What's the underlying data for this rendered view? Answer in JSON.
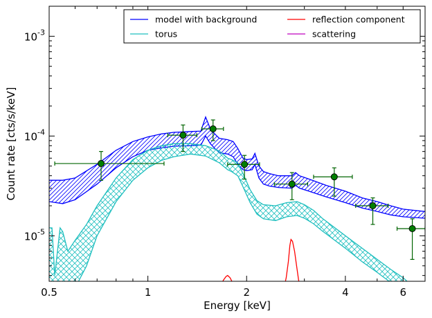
{
  "chart_data": {
    "type": "line",
    "xlabel": "Energy [keV]",
    "ylabel": "Count rate [cts/s/keV]",
    "xscale": "log",
    "yscale": "log",
    "xlim": [
      0.5,
      7.0
    ],
    "ylim": [
      3.5e-06,
      0.002
    ],
    "x_ticks": [
      {
        "value": 0.5,
        "label": "0.5"
      },
      {
        "value": 1,
        "label": "1"
      },
      {
        "value": 2,
        "label": "2"
      },
      {
        "value": 4,
        "label": "4"
      },
      {
        "value": 6,
        "label": "6"
      }
    ],
    "y_ticks": [
      {
        "value": 1e-05,
        "base": "10",
        "exp": "-5"
      },
      {
        "value": 0.0001,
        "base": "10",
        "exp": "-4"
      },
      {
        "value": 0.001,
        "base": "10",
        "exp": "-3"
      }
    ],
    "legend": {
      "position": "top-right",
      "entries": [
        {
          "label": "model with background",
          "color": "#0000ff"
        },
        {
          "label": "reflection component",
          "color": "#ff0000"
        },
        {
          "label": "torus",
          "color": "#1fbfbf"
        },
        {
          "label": "scattering",
          "color": "#bf00bf"
        }
      ]
    },
    "series": [
      {
        "name": "model with background",
        "color": "#0000ff",
        "band": true,
        "hatch": "diagonal",
        "x": [
          0.5,
          0.55,
          0.6,
          0.7,
          0.8,
          0.9,
          1.0,
          1.1,
          1.2,
          1.35,
          1.45,
          1.5,
          1.55,
          1.6,
          1.65,
          1.75,
          1.82,
          1.88,
          1.95,
          2.0,
          2.08,
          2.12,
          2.18,
          2.25,
          2.35,
          2.5,
          2.75,
          2.82,
          2.9,
          3.1,
          3.5,
          4.0,
          4.5,
          5.0,
          5.5,
          6.0,
          7.0
        ],
        "upper": [
          3.6e-05,
          3.6e-05,
          3.8e-05,
          5.2e-05,
          7.2e-05,
          8.8e-05,
          9.8e-05,
          0.000105,
          0.000109,
          0.000111,
          0.000112,
          0.000155,
          0.000118,
          0.000105,
          9.5e-05,
          9.2e-05,
          8.8e-05,
          7.5e-05,
          6e-05,
          5.8e-05,
          5.9e-05,
          6.7e-05,
          5e-05,
          4.4e-05,
          4.2e-05,
          4e-05,
          4e-05,
          4.3e-05,
          4e-05,
          3.7e-05,
          3.2e-05,
          2.8e-05,
          2.4e-05,
          2.2e-05,
          2e-05,
          1.85e-05,
          1.75e-05
        ],
        "lower": [
          2.2e-05,
          2.1e-05,
          2.3e-05,
          3.3e-05,
          4.8e-05,
          6.2e-05,
          7.2e-05,
          7.6e-05,
          7.9e-05,
          8e-05,
          8.1e-05,
          0.0001,
          8.4e-05,
          7.5e-05,
          6.8e-05,
          6.6e-05,
          6.2e-05,
          5.2e-05,
          4.6e-05,
          4.5e-05,
          4.6e-05,
          5.2e-05,
          3.8e-05,
          3.3e-05,
          3.15e-05,
          3.05e-05,
          3e-05,
          3.2e-05,
          3e-05,
          2.8e-05,
          2.45e-05,
          2.15e-05,
          1.9e-05,
          1.75e-05,
          1.62e-05,
          1.55e-05,
          1.5e-05
        ]
      },
      {
        "name": "torus",
        "color": "#1fbfbf",
        "band": true,
        "hatch": "cross",
        "x": [
          0.5,
          0.51,
          0.52,
          0.54,
          0.55,
          0.57,
          0.6,
          0.65,
          0.7,
          0.8,
          0.9,
          1.0,
          1.1,
          1.2,
          1.35,
          1.5,
          1.65,
          1.75,
          1.8,
          1.88,
          1.95,
          2.05,
          2.15,
          2.25,
          2.45,
          2.65,
          2.85,
          3.0,
          3.2,
          3.4,
          4.0,
          4.5,
          5.0,
          5.5,
          6.0,
          6.5,
          7.0
        ],
        "upper": [
          1.2e-05,
          1.2e-05,
          4e-06,
          1.2e-05,
          1.1e-05,
          7e-06,
          9e-06,
          1.3e-05,
          2e-05,
          3.8e-05,
          5.8e-05,
          7.2e-05,
          8e-05,
          8.4e-05,
          8.4e-05,
          8e-05,
          7.1e-05,
          6e-05,
          5.8e-05,
          5.4e-05,
          4.2e-05,
          2.9e-05,
          2.25e-05,
          2.05e-05,
          2e-05,
          2.15e-05,
          2.2e-05,
          2.05e-05,
          1.8e-05,
          1.5e-05,
          1e-05,
          7.5e-06,
          5.8e-06,
          4.6e-06,
          3.8e-06,
          3e-06,
          2.5e-06
        ],
        "lower": [
          3e-06,
          3e-06,
          3e-06,
          3e-06,
          3e-06,
          3e-06,
          3e-06,
          5e-06,
          1e-05,
          2.2e-05,
          3.6e-05,
          4.8e-05,
          5.7e-05,
          6.2e-05,
          6.6e-05,
          6.3e-05,
          5.4e-05,
          4.6e-05,
          4.4e-05,
          4e-05,
          3.1e-05,
          2.15e-05,
          1.65e-05,
          1.48e-05,
          1.42e-05,
          1.55e-05,
          1.6e-05,
          1.5e-05,
          1.32e-05,
          1.12e-05,
          7.5e-06,
          5.5e-06,
          4.3e-06,
          3.4e-06,
          2.8e-06,
          2.2e-06,
          1.8e-06
        ]
      },
      {
        "name": "reflection component",
        "color": "#ff0000",
        "band": false,
        "x": [
          1.65,
          1.7,
          1.73,
          1.75,
          1.78,
          1.82,
          1.86,
          2.6,
          2.64,
          2.68,
          2.71,
          2.73,
          2.76,
          2.8,
          2.84,
          2.88,
          2.92
        ],
        "y": [
          3e-06,
          3.6e-06,
          3.9e-06,
          4e-06,
          3.8e-06,
          3.3e-06,
          3e-06,
          3e-06,
          3.8e-06,
          5.5e-06,
          8e-06,
          9.2e-06,
          8.8e-06,
          7e-06,
          5e-06,
          3.6e-06,
          3e-06
        ]
      }
    ],
    "data_points": {
      "color": "#006400",
      "marker_fill": "#007f00",
      "points": [
        {
          "x": 0.72,
          "y": 5.3e-05,
          "xerr": [
            0.2,
            0.4
          ],
          "yerr": [
            1.7e-05,
            1.7e-05
          ]
        },
        {
          "x": 1.28,
          "y": 0.000102,
          "xerr": [
            0.13,
            0.13
          ],
          "yerr": [
            3.2e-05,
            2.7e-05
          ]
        },
        {
          "x": 1.58,
          "y": 0.000118,
          "xerr": [
            0.12,
            0.12
          ],
          "yerr": [
            2.8e-05,
            2.7e-05
          ]
        },
        {
          "x": 1.97,
          "y": 5.2e-05,
          "xerr": [
            0.22,
            0.22
          ],
          "yerr": [
            1.5e-05,
            1.2e-05
          ]
        },
        {
          "x": 2.75,
          "y": 3.3e-05,
          "xerr": [
            0.32,
            0.32
          ],
          "yerr": [
            1e-05,
            1e-05
          ]
        },
        {
          "x": 3.7,
          "y": 3.9e-05,
          "xerr": [
            0.5,
            0.5
          ],
          "yerr": [
            1.4e-05,
            9e-06
          ]
        },
        {
          "x": 4.85,
          "y": 2e-05,
          "xerr": [
            0.55,
            0.55
          ],
          "yerr": [
            7e-06,
            4e-06
          ]
        },
        {
          "x": 6.4,
          "y": 1.18e-05,
          "xerr": [
            0.65,
            0.6
          ],
          "yerr": [
            6e-06,
            3e-06
          ]
        }
      ]
    }
  }
}
